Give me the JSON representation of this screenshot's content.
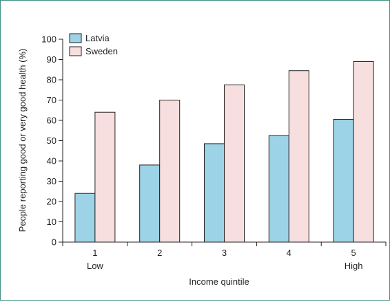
{
  "chart_data": {
    "type": "bar",
    "title": "",
    "xlabel": "Income quintile",
    "ylabel": "People reporting good or very good health (%)",
    "ylim": [
      0,
      100
    ],
    "yticks": [
      0,
      10,
      20,
      30,
      40,
      50,
      60,
      70,
      80,
      90,
      100
    ],
    "categories": [
      "1",
      "2",
      "3",
      "4",
      "5"
    ],
    "category_sublabels": [
      "Low",
      "",
      "",
      "",
      "High"
    ],
    "series": [
      {
        "name": "Latvia",
        "color": "#9dd3e6",
        "values": [
          24,
          38,
          48.5,
          52.5,
          60.5
        ]
      },
      {
        "name": "Sweden",
        "color": "#f6dfde",
        "values": [
          64,
          70,
          77.5,
          84.5,
          89
        ]
      }
    ],
    "legend_position": "top-left",
    "grid": false,
    "frame_color": "#3d8f84"
  }
}
